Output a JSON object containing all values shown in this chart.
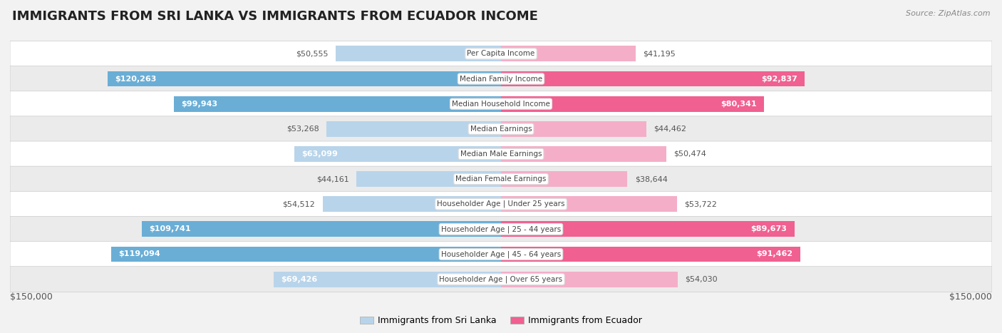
{
  "title": "IMMIGRANTS FROM SRI LANKA VS IMMIGRANTS FROM ECUADOR INCOME",
  "source": "Source: ZipAtlas.com",
  "categories": [
    "Per Capita Income",
    "Median Family Income",
    "Median Household Income",
    "Median Earnings",
    "Median Male Earnings",
    "Median Female Earnings",
    "Householder Age | Under 25 years",
    "Householder Age | 25 - 44 years",
    "Householder Age | 45 - 64 years",
    "Householder Age | Over 65 years"
  ],
  "sri_lanka_values": [
    50555,
    120263,
    99943,
    53268,
    63099,
    44161,
    54512,
    109741,
    119094,
    69426
  ],
  "ecuador_values": [
    41195,
    92837,
    80341,
    44462,
    50474,
    38644,
    53722,
    89673,
    91462,
    54030
  ],
  "sri_lanka_labels": [
    "$50,555",
    "$120,263",
    "$99,943",
    "$53,268",
    "$63,099",
    "$44,161",
    "$54,512",
    "$109,741",
    "$119,094",
    "$69,426"
  ],
  "ecuador_labels": [
    "$41,195",
    "$92,837",
    "$80,341",
    "$44,462",
    "$50,474",
    "$38,644",
    "$53,722",
    "$89,673",
    "$91,462",
    "$54,030"
  ],
  "sl_large_color": "#6aaed6",
  "sl_small_color": "#b8d4ea",
  "ec_large_color": "#f06090",
  "ec_small_color": "#f4aec8",
  "large_threshold": 80000,
  "max_value": 150000,
  "bar_height": 0.62,
  "background_color": "#f2f2f2",
  "row_odd_color": "#ffffff",
  "row_even_color": "#ebebeb",
  "legend_sri_lanka": "Immigrants from Sri Lanka",
  "legend_ecuador": "Immigrants from Ecuador",
  "xlabel_left": "$150,000",
  "xlabel_right": "$150,000",
  "outside_label_color": "#555555",
  "inside_label_color": "#ffffff",
  "label_inside_threshold": 60000,
  "title_fontsize": 13,
  "source_fontsize": 8,
  "bar_label_fontsize": 8,
  "cat_label_fontsize": 7.5,
  "axis_label_fontsize": 9,
  "legend_fontsize": 9
}
